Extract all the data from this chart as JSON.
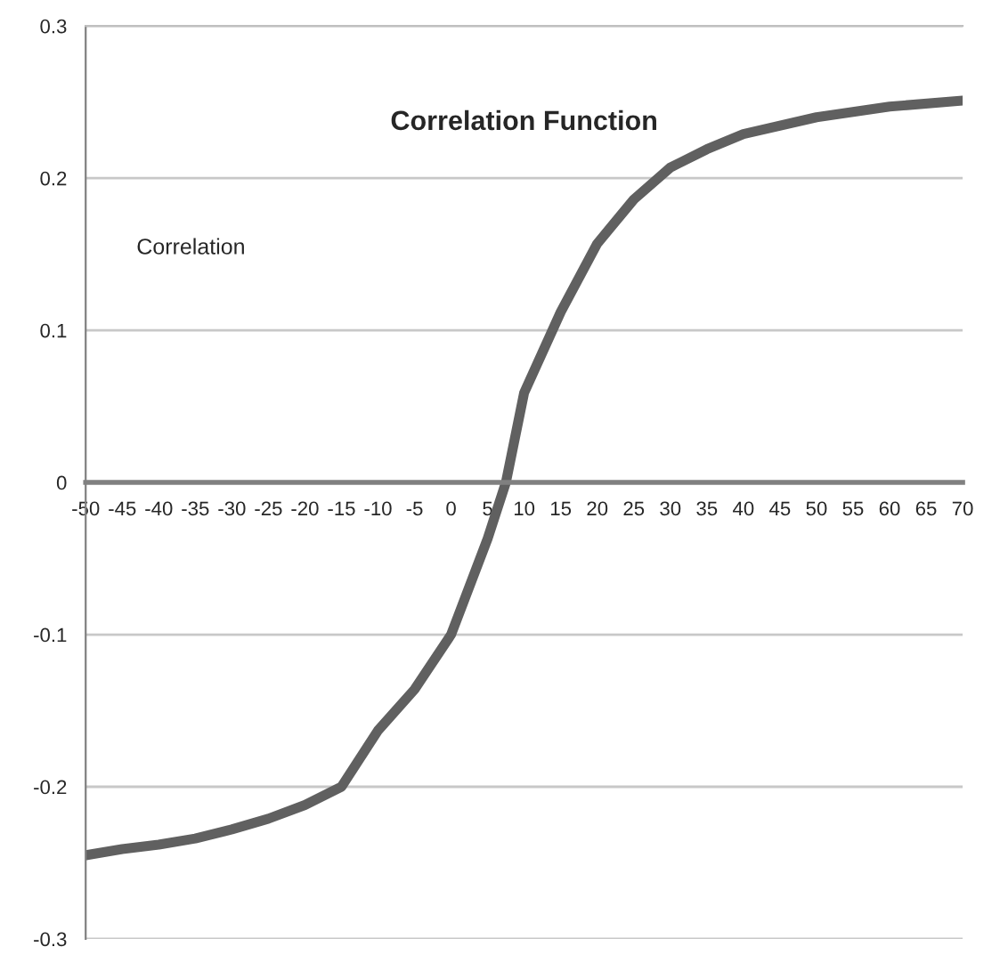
{
  "chart_data": {
    "type": "line",
    "title": "Correlation Function",
    "ylabel": "Correlation",
    "x": [
      -50,
      -45,
      -40,
      -35,
      -30,
      -25,
      -20,
      -15,
      -10,
      -5,
      0,
      5,
      7.5,
      10,
      15,
      20,
      25,
      30,
      35,
      40,
      50,
      60,
      70
    ],
    "series": [
      {
        "color": "#606060",
        "values": [
          -0.245,
          -0.241,
          -0.238,
          -0.234,
          -0.228,
          -0.221,
          -0.212,
          -0.2,
          -0.163,
          -0.136,
          -0.1,
          -0.037,
          0,
          0.059,
          0.112,
          0.157,
          0.186,
          0.207,
          0.219,
          0.229,
          0.24,
          0.247,
          0.251
        ]
      }
    ],
    "xlim": [
      -50,
      70
    ],
    "xticks": [
      -50,
      -45,
      -40,
      -35,
      -30,
      -25,
      -20,
      -15,
      -10,
      -5,
      0,
      5,
      10,
      15,
      20,
      25,
      30,
      35,
      40,
      45,
      50,
      55,
      60,
      65,
      70
    ],
    "ylim": [
      -0.3,
      0.3
    ],
    "yticks": [
      -0.3,
      -0.2,
      -0.1,
      0,
      0.1,
      0.2,
      0.3
    ],
    "grid": "y",
    "legend": false,
    "marker": "none",
    "line_style": "solid"
  }
}
